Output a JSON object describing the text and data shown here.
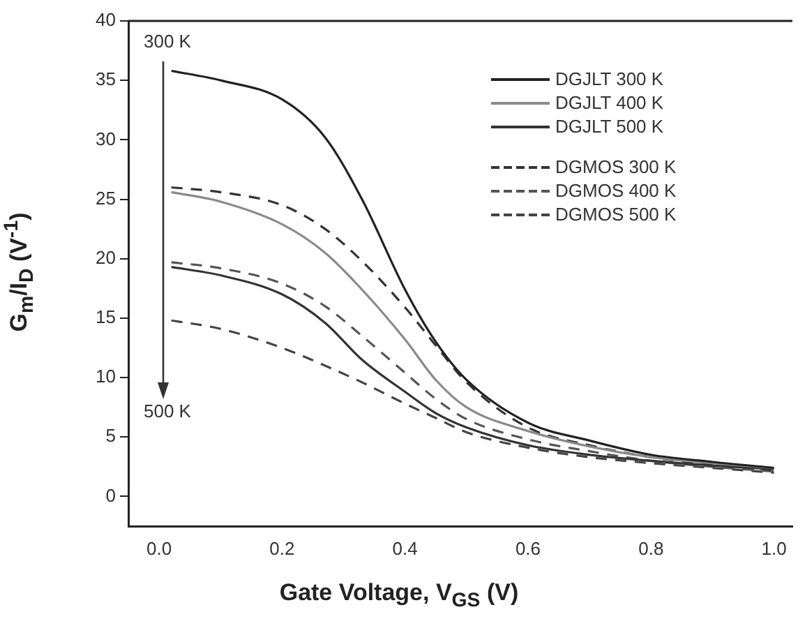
{
  "chart_data": {
    "type": "line",
    "xlabel": "Gate Voltage, V$_{GS}$ (V)",
    "ylabel": "G$_{m}$/I$_{D}$ (V$^{-1}$)",
    "xlim": [
      -0.05,
      1.03
    ],
    "ylim": [
      -2.5,
      40
    ],
    "xticks": [
      {
        "value": 0,
        "label": "0.0"
      },
      {
        "value": 0.2,
        "label": "0.2"
      },
      {
        "value": 0.4,
        "label": "0.4"
      },
      {
        "value": 0.6,
        "label": "0.6"
      },
      {
        "value": 0.8,
        "label": "0.8"
      },
      {
        "value": 1,
        "label": "1.0"
      }
    ],
    "yticks": [
      0,
      5,
      10,
      15,
      20,
      25,
      30,
      35,
      40
    ],
    "grid": false,
    "legend": "top right",
    "marker": "none",
    "annotations": [
      "300 K",
      "500 K"
    ],
    "x": [
      0.02,
      0.1,
      0.2,
      0.27,
      0.33,
      0.4,
      0.45,
      0.5,
      0.6,
      0.7,
      0.8,
      0.9,
      1.0
    ],
    "series": [
      {
        "name": "DGJLT 300 K",
        "color": "#222222",
        "line_style": "solid",
        "values": [
          35.8,
          35,
          33.4,
          30.2,
          25,
          17.4,
          13,
          9.8,
          6.2,
          4.7,
          3.5,
          2.9,
          2.4
        ]
      },
      {
        "name": "DGJLT 400 K",
        "color": "#8a8a8a",
        "line_style": "solid",
        "values": [
          25.6,
          24.8,
          22.9,
          20.5,
          17.4,
          13.2,
          9.8,
          7.5,
          5.5,
          4.2,
          3.3,
          2.8,
          2.4
        ]
      },
      {
        "name": "DGJLT 500 K",
        "color": "#333333",
        "line_style": "solid",
        "values": [
          19.3,
          18.6,
          17,
          14.6,
          11.5,
          8.8,
          7,
          5.8,
          4.3,
          3.5,
          3,
          2.6,
          2.3
        ]
      },
      {
        "name": "DGMOS 300 K",
        "color": "#333333",
        "line_style": "dashed",
        "values": [
          26,
          25.6,
          24.5,
          22.5,
          19.8,
          15.9,
          12.7,
          9.6,
          5.8,
          4.3,
          3.3,
          2.7,
          2.2
        ]
      },
      {
        "name": "DGMOS 400 K",
        "color": "#555555",
        "line_style": "dashed",
        "values": [
          19.7,
          19.2,
          17.9,
          16,
          13.5,
          10.4,
          8.2,
          6.5,
          4.8,
          3.8,
          3,
          2.5,
          2.1
        ]
      },
      {
        "name": "DGMOS 500 K",
        "color": "#444444",
        "line_style": "dashed",
        "values": [
          14.8,
          14.1,
          12.5,
          11,
          9.6,
          7.8,
          6.6,
          5.4,
          4.1,
          3.3,
          2.8,
          2.4,
          2
        ]
      }
    ]
  }
}
